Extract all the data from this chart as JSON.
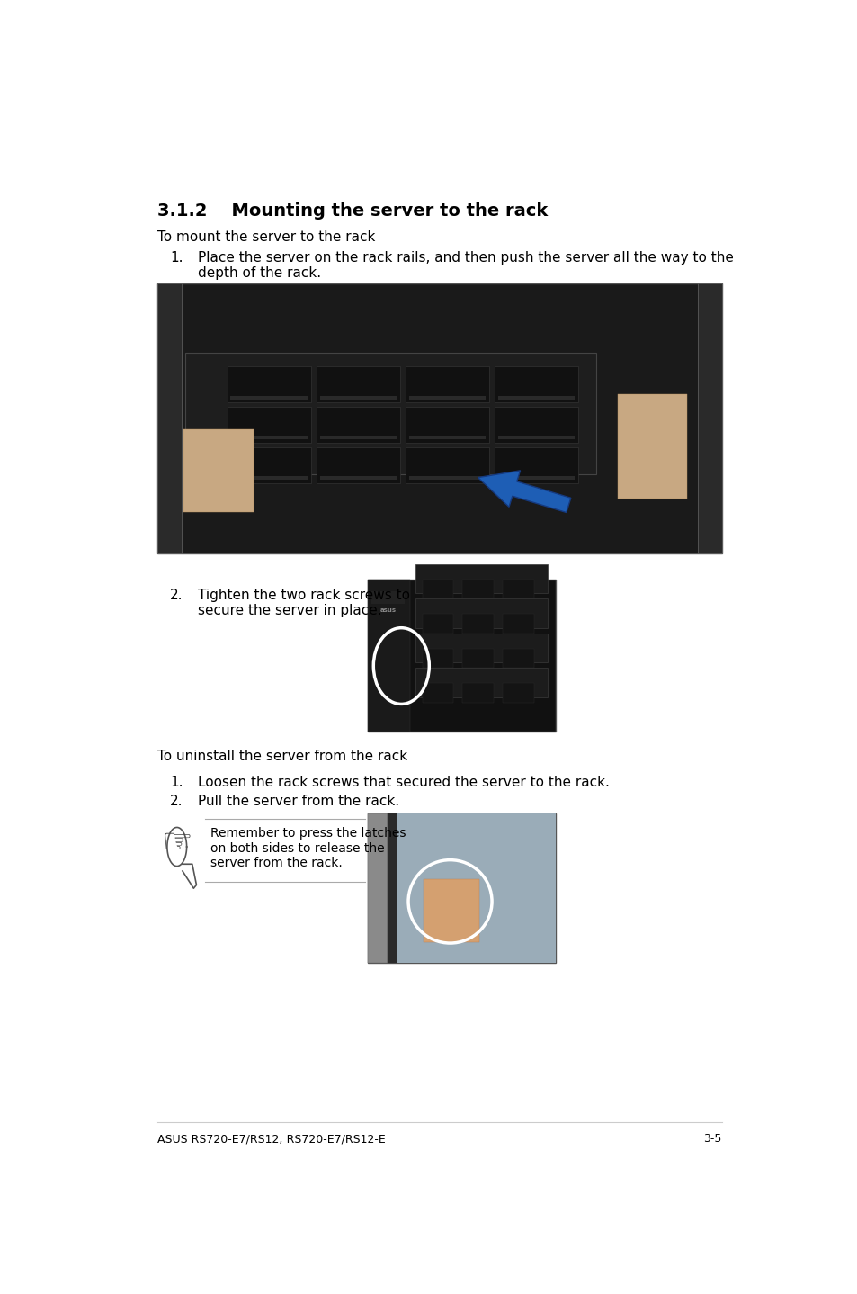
{
  "bg_color": "#ffffff",
  "title": "3.1.2    Mounting the server to the rack",
  "title_fontsize": 14,
  "body_fontsize": 11,
  "small_fontsize": 10,
  "footer_fontsize": 9,
  "section_intro1": "To mount the server to the rack",
  "step1_num": "1.",
  "step1_text": "Place the server on the rack rails, and then push the server all the way to the\ndepth of the rack.",
  "step2_num": "2.",
  "step2_text": "Tighten the two rack screws to\nsecure the server in place.",
  "section_intro2": "To uninstall the server from the rack",
  "step3_num": "1.",
  "step3_text": "Loosen the rack screws that secured the server to the rack.",
  "step4_num": "2.",
  "step4_text": "Pull the server from the rack.",
  "note_text": "Remember to press the latches\non both sides to release the\nserver from the rack.",
  "footer_left": "ASUS RS720-E7/RS12; RS720-E7/RS12-E",
  "footer_right": "3-5"
}
